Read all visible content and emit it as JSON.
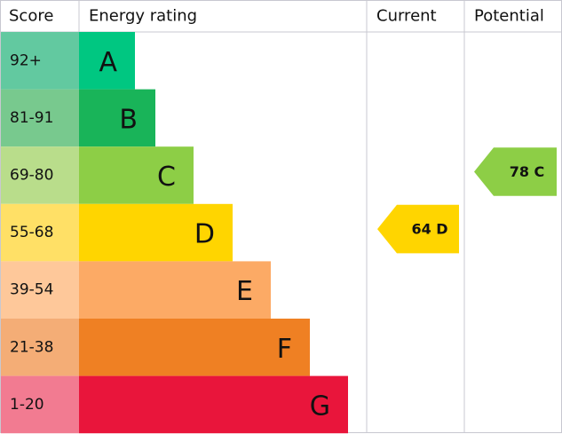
{
  "header": {
    "score": "Score",
    "rating": "Energy rating",
    "current": "Current",
    "potential": "Potential"
  },
  "bands": [
    {
      "score": "92+",
      "letter": "A",
      "color": "#00c781",
      "score_color": "#62c9a0"
    },
    {
      "score": "81-91",
      "letter": "B",
      "color": "#19b459",
      "score_color": "#78c98e"
    },
    {
      "score": "69-80",
      "letter": "C",
      "color": "#8dce46",
      "score_color": "#b9dd8b"
    },
    {
      "score": "55-68",
      "letter": "D",
      "color": "#ffd500",
      "score_color": "#ffe066"
    },
    {
      "score": "39-54",
      "letter": "E",
      "color": "#fcaa65",
      "score_color": "#fec89a"
    },
    {
      "score": "21-38",
      "letter": "F",
      "color": "#ef8023",
      "score_color": "#f4ad76"
    },
    {
      "score": "1-20",
      "letter": "G",
      "color": "#e9153b",
      "score_color": "#f27b91"
    }
  ],
  "current": {
    "label": "64 D",
    "color": "#ffd500"
  },
  "potential": {
    "label": "78 C",
    "color": "#8dce46"
  }
}
